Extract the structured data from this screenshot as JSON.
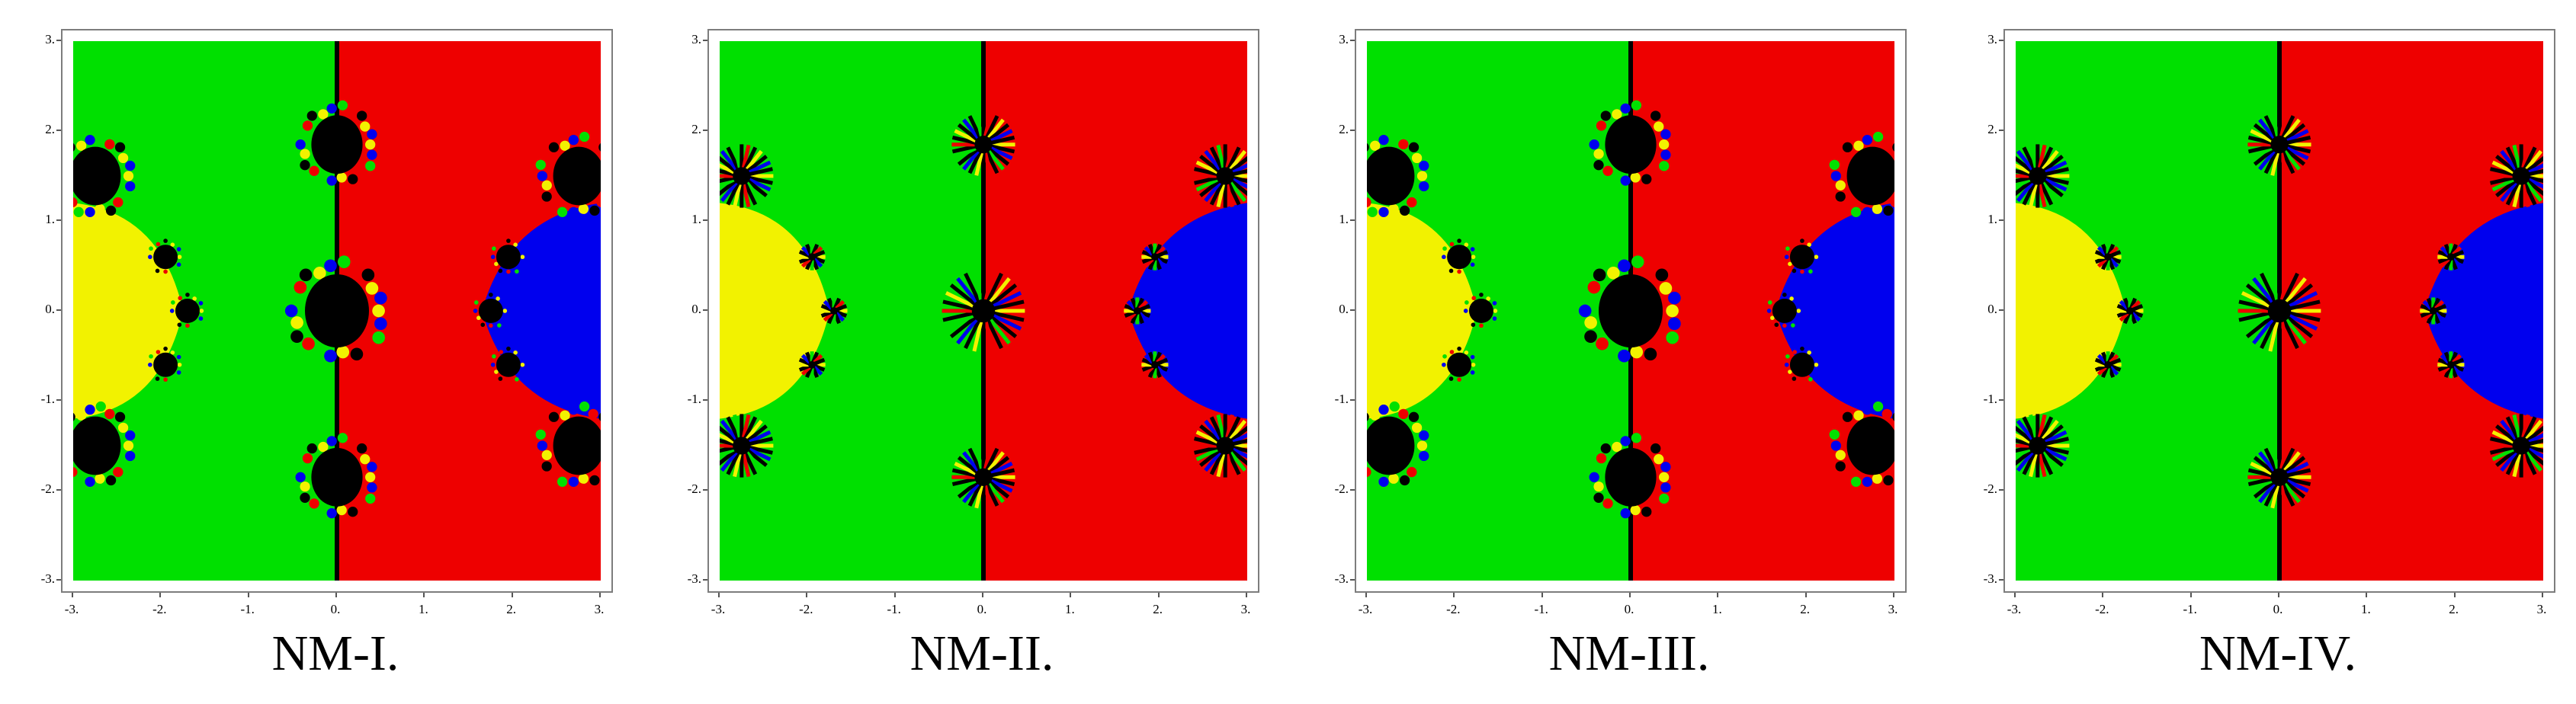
{
  "panels": [
    {
      "caption": "NM-I.",
      "variant": "bulb"
    },
    {
      "caption": "NM-II.",
      "variant": "star"
    },
    {
      "caption": "NM-III.",
      "variant": "bulb"
    },
    {
      "caption": "NM-IV.",
      "variant": "star"
    }
  ],
  "axes": {
    "x_ticks": [
      "-3.",
      "-2.",
      "-1.",
      "0.",
      "1.",
      "2.",
      "3."
    ],
    "y_ticks": [
      "3.",
      "2.",
      "1.",
      "0.",
      "-1.",
      "-2.",
      "-3."
    ]
  },
  "colors": {
    "green": "#00e000",
    "red": "#ee0000",
    "yellow": "#f2f200",
    "blue": "#0000ee",
    "black": "#000000"
  }
}
